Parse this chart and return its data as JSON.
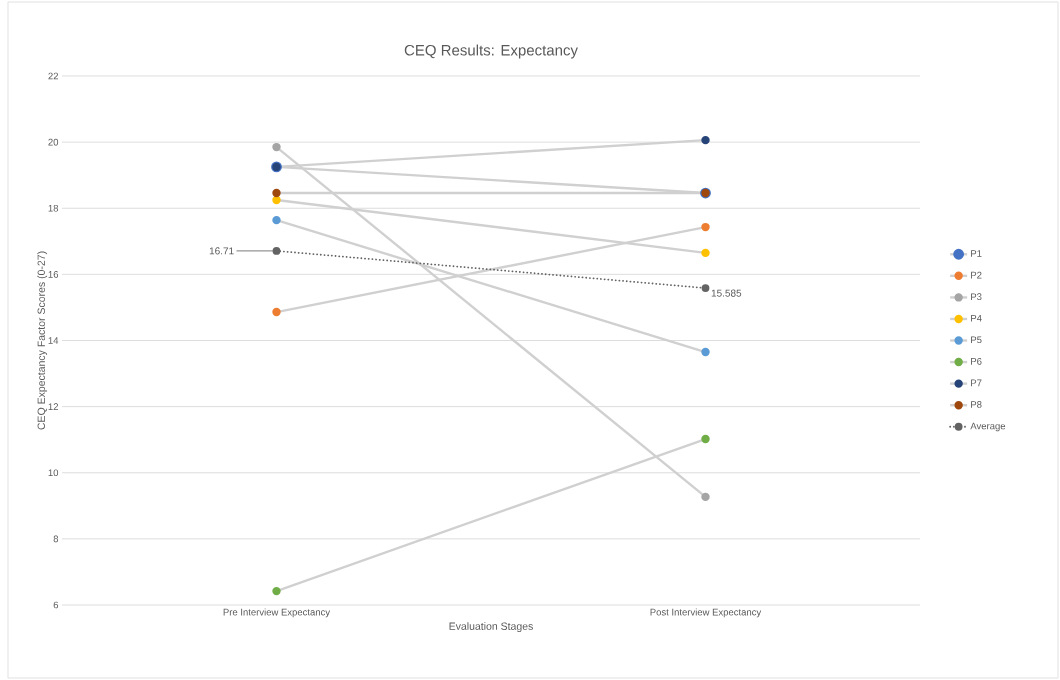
{
  "chart_data": {
    "type": "line",
    "title": "CEQ Results: Expectancy",
    "xlabel": "Evaluation Stages",
    "ylabel": "CEQ Expectancy Factor Scores (0-27)",
    "categories": [
      "Pre Interview Expectancy",
      "Post Interview Expectancy"
    ],
    "series": [
      {
        "name": "P1",
        "color": "#4472c4",
        "values": [
          19.25,
          18.46
        ]
      },
      {
        "name": "P2",
        "color": "#ed7d31",
        "values": [
          14.86,
          17.43
        ]
      },
      {
        "name": "P3",
        "color": "#a5a5a5",
        "values": [
          19.85,
          9.27
        ]
      },
      {
        "name": "P4",
        "color": "#ffc000",
        "values": [
          18.25,
          16.65
        ]
      },
      {
        "name": "P5",
        "color": "#5b9bd5",
        "values": [
          17.64,
          13.65
        ]
      },
      {
        "name": "P6",
        "color": "#70ad47",
        "values": [
          6.42,
          11.02
        ]
      },
      {
        "name": "P7",
        "color": "#264478",
        "values": [
          19.25,
          20.06
        ]
      },
      {
        "name": "P8",
        "color": "#9e480e",
        "values": [
          18.46,
          18.46
        ]
      },
      {
        "name": "Average",
        "color": "#636363",
        "line_style": "dotted",
        "values": [
          16.71,
          15.585
        ],
        "value_labels": [
          "16.71",
          "15.585"
        ]
      }
    ],
    "ylim": [
      6,
      22
    ],
    "yticks": [
      6,
      8,
      10,
      12,
      14,
      16,
      18,
      20,
      22
    ],
    "grid": "y",
    "legend": "right",
    "marker": "circle",
    "line_style": "solid"
  }
}
